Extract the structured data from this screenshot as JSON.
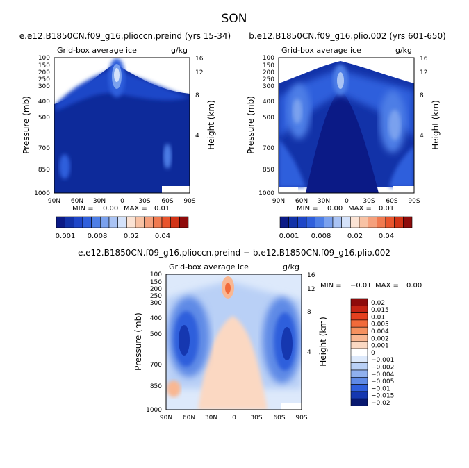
{
  "title": "SON",
  "chart_data": [
    {
      "type": "heatmap",
      "title": "e.e12.B1850CN.f09_g16.plioccn.preind (yrs 15-34)",
      "subtitle_left": "Grid-box average ice",
      "subtitle_right": "g/kg",
      "xlabel": "",
      "ylabel": "Pressure (mb)",
      "ylabel_right": "Height (km)",
      "x_ticks": [
        "90N",
        "60N",
        "30N",
        "0",
        "30S",
        "60S",
        "90S"
      ],
      "y_ticks": [
        "100",
        "150",
        "200",
        "250",
        "300",
        "400",
        "500",
        "700",
        "850",
        "1000"
      ],
      "y_ticks_right": [
        "16",
        "12",
        "8",
        "4"
      ],
      "xlim": [
        -90,
        90
      ],
      "ylim": [
        1000,
        100
      ],
      "stats": {
        "min_label": "MIN =",
        "min": "0.00",
        "max_label": "MAX =",
        "max": "0.01"
      },
      "features": [
        {
          "lat": -8,
          "p": 195,
          "value": 0.006
        },
        {
          "lat": -75,
          "p": 820,
          "value": 0.004
        },
        {
          "lat": 60,
          "p": 780,
          "value": 0.004
        },
        {
          "lat": -50,
          "p": 330,
          "value": 0.003
        },
        {
          "lat": 45,
          "p": 350,
          "value": 0.002
        }
      ]
    },
    {
      "type": "heatmap",
      "title": "b.e12.B1850CN.f09_g16.plio.002 (yrs 601-650)",
      "subtitle_left": "Grid-box average ice",
      "subtitle_right": "g/kg",
      "xlabel": "",
      "ylabel": "Pressure (mb)",
      "ylabel_right": "Height (km)",
      "x_ticks": [
        "90N",
        "60N",
        "30N",
        "0",
        "30S",
        "60S",
        "90S"
      ],
      "y_ticks": [
        "100",
        "150",
        "200",
        "250",
        "300",
        "400",
        "500",
        "700",
        "850",
        "1000"
      ],
      "y_ticks_right": [
        "16",
        "12",
        "8",
        "4"
      ],
      "xlim": [
        -90,
        90
      ],
      "ylim": [
        1000,
        100
      ],
      "stats": {
        "min_label": "MIN =",
        "min": "0.00",
        "max_label": "MAX =",
        "max": "0.01"
      },
      "features": [
        {
          "lat": -2,
          "p": 230,
          "value": 0.005
        },
        {
          "lat": -55,
          "p": 450,
          "value": 0.005
        },
        {
          "lat": 55,
          "p": 480,
          "value": 0.005
        },
        {
          "lat": -70,
          "p": 800,
          "value": 0.003
        },
        {
          "lat": 70,
          "p": 800,
          "value": 0.003
        }
      ]
    },
    {
      "type": "heatmap",
      "title": "e.e12.B1850CN.f09_g16.plioccn.preind − b.e12.B1850CN.f09_g16.plio.002",
      "subtitle_left": "Grid-box average ice",
      "subtitle_right": "g/kg",
      "xlabel": "",
      "ylabel": "Pressure (mb)",
      "ylabel_right": "Height (km)",
      "x_ticks": [
        "90N",
        "60N",
        "30N",
        "0",
        "30S",
        "60S",
        "90S"
      ],
      "y_ticks": [
        "100",
        "150",
        "200",
        "250",
        "300",
        "400",
        "500",
        "700",
        "850",
        "1000"
      ],
      "y_ticks_right": [
        "16",
        "12",
        "8",
        "4"
      ],
      "xlim": [
        -90,
        90
      ],
      "ylim": [
        1000,
        100
      ],
      "stats": {
        "min_label": "MIN =",
        "min": "−0.01",
        "max_label": "MAX =",
        "max": "0.00"
      },
      "features": [
        {
          "lat": -60,
          "p": 500,
          "value": -0.01
        },
        {
          "lat": 60,
          "p": 480,
          "value": -0.01
        },
        {
          "lat": -8,
          "p": 200,
          "value": 0.003
        },
        {
          "lat": -78,
          "p": 850,
          "value": 0.002
        },
        {
          "lat": 0,
          "p": 700,
          "value": 0.001
        }
      ]
    }
  ],
  "colorbar_abs": {
    "labels": [
      "0.001",
      "0.008",
      "0.02",
      "0.04"
    ],
    "colors": [
      "#0b1a86",
      "#1232a8",
      "#1e46c8",
      "#2f5fdc",
      "#4d7ee6",
      "#7aa1ee",
      "#a9c3f4",
      "#d4e2fa",
      "#fbe3d4",
      "#f8c2a4",
      "#f5a07c",
      "#f07a50",
      "#e9552d",
      "#d23316",
      "#8e0b0b"
    ]
  },
  "colorbar_diff": {
    "levels": [
      "0.02",
      "0.015",
      "0.01",
      "0.005",
      "0.004",
      "0.002",
      "0.001",
      "0",
      "−0.001",
      "−0.002",
      "−0.004",
      "−0.005",
      "−0.01",
      "−0.015",
      "−0.02"
    ],
    "colors": [
      "#8e0b0b",
      "#c42414",
      "#e5401f",
      "#f26a3a",
      "#f6915f",
      "#f9b792",
      "#fbd8c2",
      "#ffffff",
      "#dde9fb",
      "#b9d0f6",
      "#8fb0ef",
      "#5f8ae6",
      "#2f5fdc",
      "#1537b0",
      "#08186f"
    ]
  }
}
